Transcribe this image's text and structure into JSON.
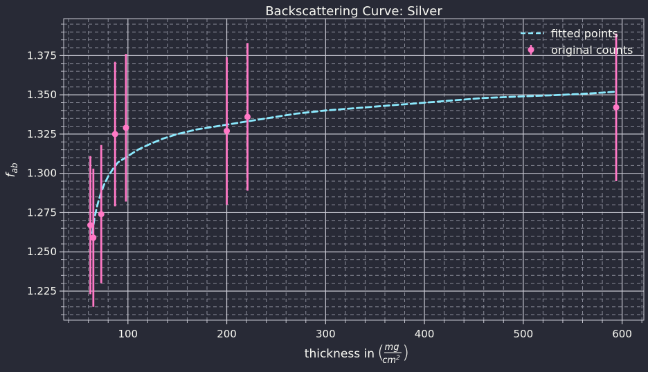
{
  "chart_data": {
    "type": "scatter",
    "title": "Backscattering Curve: Silver",
    "xlabel_prefix": "thickness in",
    "xlabel_unit_num": "mg",
    "xlabel_unit_den": "cm",
    "xlabel_unit_den_exp": "2",
    "ylabel_main": "f",
    "ylabel_sub": "ab",
    "xlim": [
      35,
      622
    ],
    "ylim": [
      1.2065,
      1.3985
    ],
    "x_ticks": [
      100,
      200,
      300,
      400,
      500,
      600
    ],
    "x_tick_labels": [
      "100",
      "200",
      "300",
      "400",
      "500",
      "600"
    ],
    "y_ticks": [
      1.225,
      1.25,
      1.275,
      1.3,
      1.325,
      1.35,
      1.375
    ],
    "y_tick_labels": [
      "1.225",
      "1.250",
      "1.275",
      "1.300",
      "1.325",
      "1.350",
      "1.375"
    ],
    "grid": true,
    "minor_grid": true,
    "legend_position": "top-right",
    "series": [
      {
        "name": "fitted points",
        "kind": "dashed-line",
        "color": "#8be9fd",
        "x": [
          64,
          66,
          68,
          70,
          73,
          76,
          80,
          85,
          90,
          95,
          100,
          110,
          120,
          135,
          150,
          170,
          190,
          210,
          240,
          270,
          300,
          340,
          380,
          420,
          460,
          500,
          540,
          570,
          594
        ],
        "y": [
          1.262,
          1.271,
          1.277,
          1.282,
          1.288,
          1.293,
          1.298,
          1.303,
          1.307,
          1.309,
          1.311,
          1.315,
          1.318,
          1.322,
          1.325,
          1.328,
          1.33,
          1.332,
          1.335,
          1.338,
          1.34,
          1.342,
          1.344,
          1.346,
          1.348,
          1.349,
          1.35,
          1.351,
          1.352
        ]
      },
      {
        "name": "original counts",
        "kind": "errorbar",
        "color": "#ff79c6",
        "x": [
          62,
          65,
          73,
          87,
          98,
          200,
          221,
          594
        ],
        "y": [
          1.267,
          1.259,
          1.274,
          1.325,
          1.329,
          1.327,
          1.336,
          1.342
        ],
        "yerr": [
          0.044,
          0.044,
          0.044,
          0.046,
          0.047,
          0.047,
          0.047,
          0.047
        ]
      }
    ]
  }
}
